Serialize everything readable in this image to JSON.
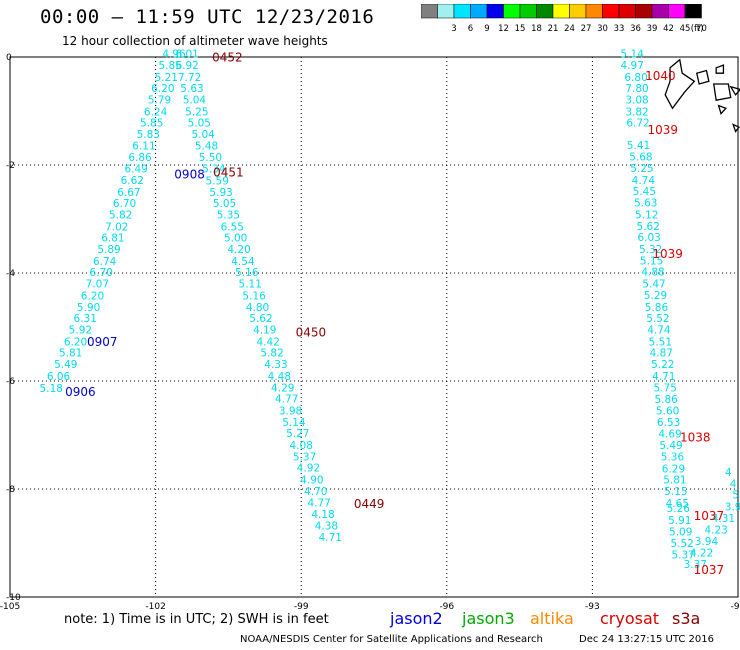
{
  "header": {
    "title": "00:00 – 11:59 UTC 12/23/2016",
    "subtitle": "12 hour collection of altimeter wave heights"
  },
  "color_scale": {
    "unit": "(ft)",
    "bins": [
      {
        "label": "",
        "color": "#808080"
      },
      {
        "label": "3",
        "color": "#a0f0f0"
      },
      {
        "label": "6",
        "color": "#00e5ff"
      },
      {
        "label": "9",
        "color": "#00aaff"
      },
      {
        "label": "12",
        "color": "#0000ee"
      },
      {
        "label": "15",
        "color": "#00ff00"
      },
      {
        "label": "18",
        "color": "#00cc00"
      },
      {
        "label": "21",
        "color": "#008800"
      },
      {
        "label": "24",
        "color": "#ffff00"
      },
      {
        "label": "27",
        "color": "#ffcc00"
      },
      {
        "label": "30",
        "color": "#ff8800"
      },
      {
        "label": "33",
        "color": "#ff0000"
      },
      {
        "label": "36",
        "color": "#dd0000"
      },
      {
        "label": "39",
        "color": "#aa0000"
      },
      {
        "label": "42",
        "color": "#aa00aa"
      },
      {
        "label": "45",
        "color": "#ff00ff"
      },
      {
        "label": "70",
        "color": "#000000"
      }
    ]
  },
  "map": {
    "lon_range": [
      -105,
      -90
    ],
    "lat_range": [
      -10,
      0
    ],
    "x_ticks": [
      "-105",
      "-102",
      "-99",
      "-96",
      "-93",
      "-90"
    ],
    "y_ticks": [
      "0",
      "-2",
      "-4",
      "-6",
      "-8",
      "-10"
    ],
    "gridlines": "dotted",
    "land": "Galapagos Islands (top-right)"
  },
  "track_colors": {
    "jason2": "#0000cc",
    "value": "#00ddee",
    "s3a_time": "#dd0000",
    "cryosat_time": "#880000"
  },
  "tracks": [
    {
      "satellite": "jason2",
      "values": [
        {
          "lon": -104.15,
          "lat": -6.2,
          "v": "5.18"
        },
        {
          "lon": -104.0,
          "lat": -5.98,
          "v": "6.06"
        },
        {
          "lon": -103.85,
          "lat": -5.76,
          "v": "5.49"
        },
        {
          "lon": -103.75,
          "lat": -5.55,
          "v": "5.81"
        },
        {
          "lon": -103.65,
          "lat": -5.34,
          "v": "6.20"
        },
        {
          "lon": -103.55,
          "lat": -5.12,
          "v": "5.92"
        },
        {
          "lon": -103.45,
          "lat": -4.91,
          "v": "6.31"
        },
        {
          "lon": -103.38,
          "lat": -4.7,
          "v": "5.90"
        },
        {
          "lon": -103.3,
          "lat": -4.49,
          "v": "6.20"
        },
        {
          "lon": -103.2,
          "lat": -4.27,
          "v": "7.07"
        },
        {
          "lon": -103.12,
          "lat": -4.06,
          "v": "6.70"
        },
        {
          "lon": -103.05,
          "lat": -3.85,
          "v": "6.74"
        },
        {
          "lon": -102.96,
          "lat": -3.63,
          "v": "5.89"
        },
        {
          "lon": -102.88,
          "lat": -3.42,
          "v": "6.81"
        },
        {
          "lon": -102.8,
          "lat": -3.21,
          "v": "7.02"
        },
        {
          "lon": -102.72,
          "lat": -2.99,
          "v": "5.82"
        },
        {
          "lon": -102.64,
          "lat": -2.78,
          "v": "6.70"
        },
        {
          "lon": -102.55,
          "lat": -2.57,
          "v": "6.67"
        },
        {
          "lon": -102.48,
          "lat": -2.35,
          "v": "6.62"
        },
        {
          "lon": -102.4,
          "lat": -2.14,
          "v": "6.49"
        },
        {
          "lon": -102.32,
          "lat": -1.93,
          "v": "6.86"
        },
        {
          "lon": -102.24,
          "lat": -1.71,
          "v": "6.11"
        },
        {
          "lon": -102.15,
          "lat": -1.5,
          "v": "5.83"
        },
        {
          "lon": -102.08,
          "lat": -1.29,
          "v": "5.85"
        },
        {
          "lon": -102.0,
          "lat": -1.08,
          "v": "6.24"
        },
        {
          "lon": -101.92,
          "lat": -0.86,
          "v": "5.79"
        },
        {
          "lon": -101.85,
          "lat": -0.65,
          "v": "6.20"
        },
        {
          "lon": -101.78,
          "lat": -0.44,
          "v": "5.21"
        },
        {
          "lon": -101.7,
          "lat": -0.22,
          "v": "5.85"
        },
        {
          "lon": -101.62,
          "lat": -0.01,
          "v": "4.96"
        }
      ],
      "times": [
        {
          "lon": -103.1,
          "lat": -5.28,
          "label": "0907"
        },
        {
          "lon": -103.55,
          "lat": -6.2,
          "label": "0906"
        },
        {
          "lon": -101.3,
          "lat": -2.18,
          "label": "0908"
        }
      ]
    },
    {
      "satellite": "cryosat",
      "values": [
        {
          "lon": -101.35,
          "lat": -0.01,
          "v": "6.01"
        },
        {
          "lon": -101.35,
          "lat": -0.22,
          "v": "6.92"
        },
        {
          "lon": -101.3,
          "lat": -0.44,
          "v": "7.72"
        },
        {
          "lon": -101.25,
          "lat": -0.65,
          "v": "5.63"
        },
        {
          "lon": -101.2,
          "lat": -0.86,
          "v": "5.04"
        },
        {
          "lon": -101.15,
          "lat": -1.08,
          "v": "5.25"
        },
        {
          "lon": -101.1,
          "lat": -1.29,
          "v": "5.05"
        },
        {
          "lon": -101.02,
          "lat": -1.5,
          "v": "5.04"
        },
        {
          "lon": -100.95,
          "lat": -1.71,
          "v": "5.48"
        },
        {
          "lon": -100.87,
          "lat": -1.93,
          "v": "5.50"
        },
        {
          "lon": -100.8,
          "lat": -2.14,
          "v": "5.34"
        },
        {
          "lon": -100.73,
          "lat": -2.36,
          "v": "5.59"
        },
        {
          "lon": -100.65,
          "lat": -2.57,
          "v": "5.93"
        },
        {
          "lon": -100.58,
          "lat": -2.78,
          "v": "5.05"
        },
        {
          "lon": -100.5,
          "lat": -2.99,
          "v": "5.35"
        },
        {
          "lon": -100.42,
          "lat": -3.21,
          "v": "6.55"
        },
        {
          "lon": -100.35,
          "lat": -3.42,
          "v": "5.00"
        },
        {
          "lon": -100.28,
          "lat": -3.63,
          "v": "4.20"
        },
        {
          "lon": -100.2,
          "lat": -3.85,
          "v": "4.54"
        },
        {
          "lon": -100.12,
          "lat": -4.06,
          "v": "5.16"
        },
        {
          "lon": -100.05,
          "lat": -4.27,
          "v": "5.11"
        },
        {
          "lon": -99.97,
          "lat": -4.49,
          "v": "5.16"
        },
        {
          "lon": -99.9,
          "lat": -4.7,
          "v": "4.80"
        },
        {
          "lon": -99.83,
          "lat": -4.91,
          "v": "5.62"
        },
        {
          "lon": -99.75,
          "lat": -5.12,
          "v": "4.19"
        },
        {
          "lon": -99.68,
          "lat": -5.34,
          "v": "4.42"
        },
        {
          "lon": -99.6,
          "lat": -5.55,
          "v": "5.82"
        },
        {
          "lon": -99.52,
          "lat": -5.76,
          "v": "4.33"
        },
        {
          "lon": -99.45,
          "lat": -5.98,
          "v": "4.48"
        },
        {
          "lon": -99.38,
          "lat": -6.19,
          "v": "4.29"
        },
        {
          "lon": -99.3,
          "lat": -6.4,
          "v": "4.77"
        },
        {
          "lon": -99.22,
          "lat": -6.62,
          "v": "3.98"
        },
        {
          "lon": -99.15,
          "lat": -6.83,
          "v": "5.14"
        },
        {
          "lon": -99.07,
          "lat": -7.04,
          "v": "5.27"
        },
        {
          "lon": -99.0,
          "lat": -7.26,
          "v": "4.08"
        },
        {
          "lon": -98.93,
          "lat": -7.47,
          "v": "5.37"
        },
        {
          "lon": -98.85,
          "lat": -7.68,
          "v": "4.92"
        },
        {
          "lon": -98.78,
          "lat": -7.9,
          "v": "4.90"
        },
        {
          "lon": -98.7,
          "lat": -8.11,
          "v": "4.70"
        },
        {
          "lon": -98.63,
          "lat": -8.32,
          "v": "4.77"
        },
        {
          "lon": -98.55,
          "lat": -8.54,
          "v": "4.18"
        },
        {
          "lon": -98.48,
          "lat": -8.75,
          "v": "4.38"
        },
        {
          "lon": -98.4,
          "lat": -8.96,
          "v": "4.71"
        }
      ],
      "times": [
        {
          "lon": -100.52,
          "lat": -0.01,
          "label": "0452"
        },
        {
          "lon": -100.5,
          "lat": -2.14,
          "label": "0451"
        },
        {
          "lon": -98.8,
          "lat": -5.1,
          "label": "0450"
        },
        {
          "lon": -97.6,
          "lat": -8.28,
          "label": "0449"
        }
      ]
    },
    {
      "satellite": "s3a",
      "values": [
        {
          "lon": -92.18,
          "lat": -0.01,
          "v": "5.14"
        },
        {
          "lon": -92.18,
          "lat": -0.22,
          "v": "4.97"
        },
        {
          "lon": -92.1,
          "lat": -0.44,
          "v": "6.80"
        },
        {
          "lon": -92.08,
          "lat": -0.65,
          "v": "7.80"
        },
        {
          "lon": -92.08,
          "lat": -0.86,
          "v": "3.08"
        },
        {
          "lon": -92.08,
          "lat": -1.08,
          "v": "3.82"
        },
        {
          "lon": -92.06,
          "lat": -1.29,
          "v": "6.72"
        },
        {
          "lon": -92.05,
          "lat": -1.7,
          "v": "5.41"
        },
        {
          "lon": -92.0,
          "lat": -1.92,
          "v": "5.68"
        },
        {
          "lon": -91.98,
          "lat": -2.13,
          "v": "5.25"
        },
        {
          "lon": -91.95,
          "lat": -2.35,
          "v": "4.74"
        },
        {
          "lon": -91.93,
          "lat": -2.56,
          "v": "5.45"
        },
        {
          "lon": -91.9,
          "lat": -2.77,
          "v": "5.63"
        },
        {
          "lon": -91.88,
          "lat": -2.99,
          "v": "5.12"
        },
        {
          "lon": -91.85,
          "lat": -3.2,
          "v": "5.62"
        },
        {
          "lon": -91.83,
          "lat": -3.41,
          "v": "6.03"
        },
        {
          "lon": -91.8,
          "lat": -3.63,
          "v": "5.32"
        },
        {
          "lon": -91.78,
          "lat": -3.84,
          "v": "5.15"
        },
        {
          "lon": -91.75,
          "lat": -4.05,
          "v": "4.88"
        },
        {
          "lon": -91.73,
          "lat": -4.27,
          "v": "5.47"
        },
        {
          "lon": -91.7,
          "lat": -4.48,
          "v": "5.29"
        },
        {
          "lon": -91.68,
          "lat": -4.7,
          "v": "5.86"
        },
        {
          "lon": -91.65,
          "lat": -4.91,
          "v": "5.52"
        },
        {
          "lon": -91.63,
          "lat": -5.12,
          "v": "4.74"
        },
        {
          "lon": -91.6,
          "lat": -5.34,
          "v": "5.51"
        },
        {
          "lon": -91.58,
          "lat": -5.55,
          "v": "4.87"
        },
        {
          "lon": -91.55,
          "lat": -5.76,
          "v": "5.22"
        },
        {
          "lon": -91.53,
          "lat": -5.98,
          "v": "4.71"
        },
        {
          "lon": -91.5,
          "lat": -6.19,
          "v": "5.75"
        },
        {
          "lon": -91.48,
          "lat": -6.41,
          "v": "5.86"
        },
        {
          "lon": -91.45,
          "lat": -6.62,
          "v": "5.60"
        },
        {
          "lon": -91.43,
          "lat": -6.83,
          "v": "6.53"
        },
        {
          "lon": -91.4,
          "lat": -7.05,
          "v": "4.69"
        },
        {
          "lon": -91.38,
          "lat": -7.26,
          "v": "5.49"
        },
        {
          "lon": -91.35,
          "lat": -7.47,
          "v": "5.36"
        },
        {
          "lon": -91.33,
          "lat": -7.69,
          "v": "6.29"
        },
        {
          "lon": -91.3,
          "lat": -7.9,
          "v": "5.81"
        },
        {
          "lon": -91.28,
          "lat": -8.11,
          "v": "5.15"
        },
        {
          "lon": -91.25,
          "lat": -8.33,
          "v": "4.65"
        },
        {
          "lon": -91.23,
          "lat": -8.43,
          "v": "5.26"
        },
        {
          "lon": -91.2,
          "lat": -8.65,
          "v": "5.91"
        },
        {
          "lon": -91.18,
          "lat": -8.86,
          "v": "5.09"
        },
        {
          "lon": -91.15,
          "lat": -9.07,
          "v": "5.52"
        },
        {
          "lon": -91.13,
          "lat": -9.29,
          "v": "5.37"
        }
      ],
      "times": [
        {
          "lon": -91.6,
          "lat": -0.35,
          "label": "1040"
        },
        {
          "lon": -91.55,
          "lat": -1.35,
          "label": "1039"
        },
        {
          "lon": -91.45,
          "lat": -3.65,
          "label": "1039"
        },
        {
          "lon": -90.88,
          "lat": -7.05,
          "label": "1038"
        }
      ]
    },
    {
      "satellite": "s3a_edge",
      "values": [
        {
          "lon": -90.2,
          "lat": -7.76,
          "v": "4"
        },
        {
          "lon": -90.1,
          "lat": -7.97,
          "v": "4"
        },
        {
          "lon": -90.05,
          "lat": -8.18,
          "v": "5"
        },
        {
          "lon": -90.1,
          "lat": -8.4,
          "v": "3.9"
        },
        {
          "lon": -90.3,
          "lat": -8.61,
          "v": "4.31"
        },
        {
          "lon": -90.45,
          "lat": -8.82,
          "v": "4.23"
        },
        {
          "lon": -90.65,
          "lat": -9.04,
          "v": "3.94"
        },
        {
          "lon": -90.75,
          "lat": -9.25,
          "v": "4.22"
        },
        {
          "lon": -90.88,
          "lat": -9.46,
          "v": "3.37"
        }
      ],
      "times": [
        {
          "lon": -90.6,
          "lat": -8.5,
          "label": "1037"
        },
        {
          "lon": -90.6,
          "lat": -9.5,
          "label": "1037"
        }
      ]
    }
  ],
  "footer": {
    "note": "note:  1) Time is in UTC;  2) SWH is in feet",
    "satellites": [
      {
        "name": "jason2",
        "color": "#0000dd"
      },
      {
        "name": "jason3",
        "color": "#00aa00"
      },
      {
        "name": "altika",
        "color": "#ff8800"
      },
      {
        "name": "cryosat",
        "color": "#dd0000"
      },
      {
        "name": "s3a",
        "color": "#880000"
      }
    ],
    "credit": "NOAA/NESDIS Center for Satellite Applications and Research",
    "timestamp": "Dec 24 13:27:15 UTC 2016"
  }
}
